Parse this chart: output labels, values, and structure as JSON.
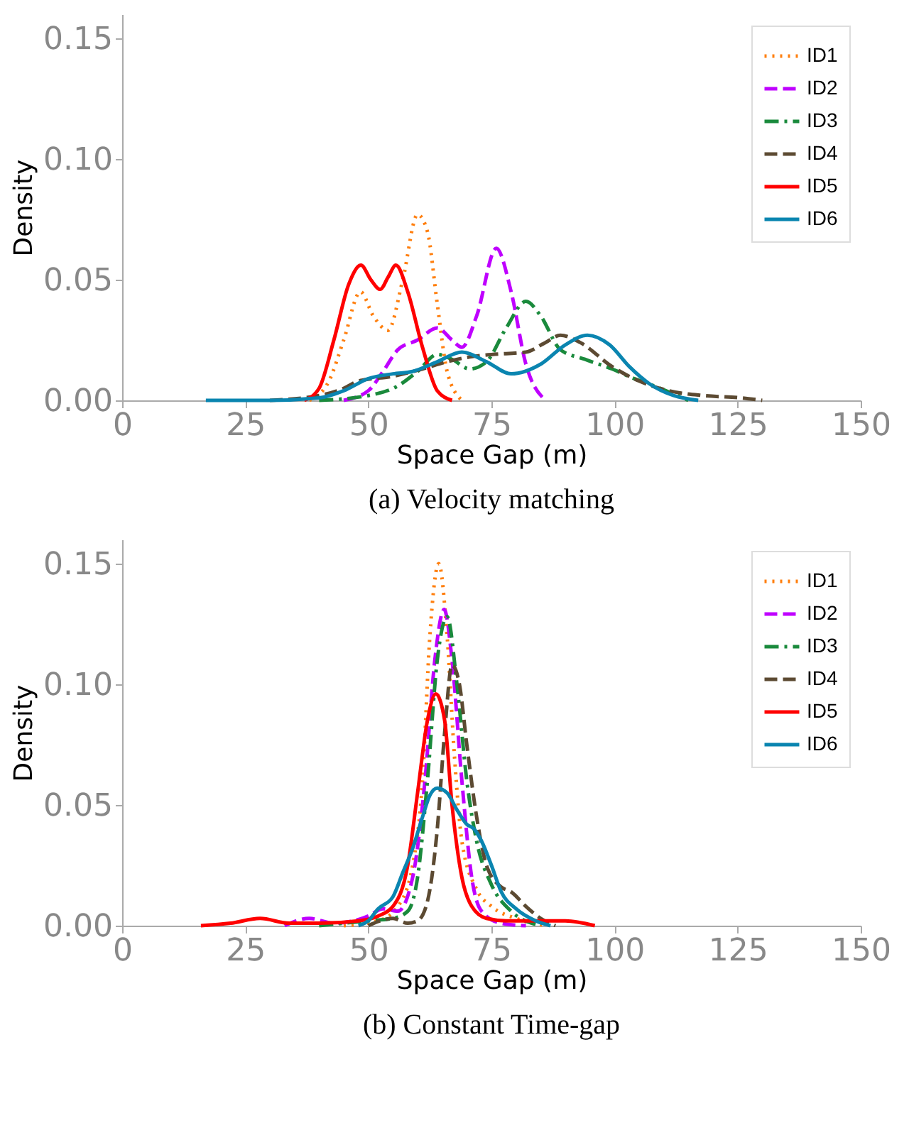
{
  "chart_data": [
    {
      "type": "line",
      "title": "(a) Velocity matching",
      "xlabel": "Space Gap (m)",
      "ylabel": "Density",
      "xlim": [
        0,
        150
      ],
      "ylim": [
        0,
        0.16
      ],
      "xticks": [
        0,
        25,
        50,
        75,
        100,
        125,
        150
      ],
      "yticks": [
        {
          "value": 0,
          "label": "0.00"
        },
        {
          "value": 0.05,
          "label": "0.05"
        },
        {
          "value": 0.1,
          "label": "0.10"
        },
        {
          "value": 0.15,
          "label": "0.15"
        }
      ],
      "grid": false,
      "legend": "top right",
      "series": [
        {
          "name": "ID1",
          "color": "#ff7f0e",
          "line_style": "dotted",
          "x": [
            38,
            42,
            45,
            48.4,
            51,
            54,
            57,
            60,
            62,
            64,
            66,
            69
          ],
          "values": [
            0,
            0.008,
            0.025,
            0.045,
            0.035,
            0.029,
            0.05,
            0.077,
            0.07,
            0.04,
            0.012,
            0
          ]
        },
        {
          "name": "ID2",
          "color": "#bf00ff",
          "line_style": "dashed",
          "x": [
            45,
            50,
            53,
            56,
            60,
            64,
            67,
            69,
            72,
            76,
            79,
            82,
            86
          ],
          "values": [
            0,
            0.004,
            0.012,
            0.021,
            0.025,
            0.03,
            0.025,
            0.022,
            0.035,
            0.063,
            0.045,
            0.015,
            0
          ]
        },
        {
          "name": "ID3",
          "color": "#1a8a3c",
          "line_style": "dashdot",
          "x": [
            40,
            50,
            56,
            60,
            64,
            67,
            70.6,
            74,
            78,
            82,
            85,
            89,
            94,
            99.5,
            104,
            108,
            115
          ],
          "values": [
            0,
            0.002,
            0.006,
            0.012,
            0.019,
            0.017,
            0.013,
            0.016,
            0.03,
            0.041,
            0.035,
            0.021,
            0.017,
            0.013,
            0.009,
            0.006,
            0
          ]
        },
        {
          "name": "ID4",
          "color": "#5c4a32",
          "line_style": "dashed",
          "x": [
            30,
            40,
            45,
            48,
            55,
            61,
            66,
            70.6,
            75,
            82,
            86,
            89,
            93,
            99.5,
            105,
            111,
            118,
            126,
            130
          ],
          "values": [
            0,
            0.002,
            0.005,
            0.008,
            0.01,
            0.013,
            0.016,
            0.018,
            0.019,
            0.02,
            0.024,
            0.027,
            0.024,
            0.014,
            0.008,
            0.004,
            0.002,
            0.001,
            0
          ]
        },
        {
          "name": "ID5",
          "color": "#ff0000",
          "line_style": "solid",
          "x": [
            37,
            40,
            43,
            46,
            48.5,
            50.5,
            52.4,
            54,
            55.6,
            58,
            61,
            64,
            67
          ],
          "values": [
            0,
            0.005,
            0.025,
            0.048,
            0.056,
            0.05,
            0.046,
            0.051,
            0.056,
            0.045,
            0.022,
            0.004,
            0
          ]
        },
        {
          "name": "ID6",
          "color": "#0a85b0",
          "line_style": "solid",
          "x": [
            17,
            30,
            40,
            45,
            50,
            55,
            59,
            64,
            69,
            74,
            79,
            85,
            90,
            94.5,
            99,
            103,
            107,
            112,
            117
          ],
          "values": [
            0,
            0,
            0.001,
            0.004,
            0.009,
            0.011,
            0.012,
            0.016,
            0.02,
            0.016,
            0.011,
            0.015,
            0.023,
            0.027,
            0.023,
            0.014,
            0.007,
            0.002,
            0
          ]
        }
      ]
    },
    {
      "type": "line",
      "title": "(b) Constant Time-gap",
      "xlabel": "Space Gap (m)",
      "ylabel": "Density",
      "xlim": [
        0,
        150
      ],
      "ylim": [
        0,
        0.16
      ],
      "xticks": [
        0,
        25,
        50,
        75,
        100,
        125,
        150
      ],
      "yticks": [
        {
          "value": 0,
          "label": "0.00"
        },
        {
          "value": 0.05,
          "label": "0.05"
        },
        {
          "value": 0.1,
          "label": "0.10"
        },
        {
          "value": 0.15,
          "label": "0.15"
        }
      ],
      "grid": false,
      "legend": "top right",
      "series": [
        {
          "name": "ID1",
          "color": "#ff7f0e",
          "line_style": "dotted",
          "x": [
            45,
            52,
            56,
            59,
            61,
            62.5,
            64.3,
            66,
            67.5,
            69,
            72,
            75,
            80,
            86
          ],
          "values": [
            0,
            0.002,
            0.008,
            0.025,
            0.06,
            0.12,
            0.15,
            0.12,
            0.07,
            0.035,
            0.015,
            0.008,
            0.003,
            0
          ]
        },
        {
          "name": "ID2",
          "color": "#bf00ff",
          "line_style": "dashed",
          "x": [
            33,
            38,
            43,
            50,
            53,
            56,
            59,
            61.5,
            63.5,
            65.4,
            67,
            69,
            71,
            73,
            77,
            82
          ],
          "values": [
            0,
            0.003,
            0.001,
            0.004,
            0.007,
            0.006,
            0.02,
            0.06,
            0.11,
            0.131,
            0.11,
            0.06,
            0.02,
            0.006,
            0.001,
            0
          ]
        },
        {
          "name": "ID3",
          "color": "#1a8a3c",
          "line_style": "dashdot",
          "x": [
            40,
            50,
            55,
            58,
            60,
            62,
            64,
            66,
            68,
            70,
            72,
            75,
            79,
            85
          ],
          "values": [
            0,
            0.002,
            0.003,
            0.006,
            0.02,
            0.06,
            0.11,
            0.128,
            0.1,
            0.06,
            0.035,
            0.017,
            0.006,
            0
          ]
        },
        {
          "name": "ID4",
          "color": "#5c4a32",
          "line_style": "dashed",
          "x": [
            50,
            55,
            58,
            60,
            62,
            64,
            65.5,
            67,
            68.5,
            70,
            72,
            74,
            77,
            79,
            82,
            85,
            88
          ],
          "values": [
            0,
            0.003,
            0.001,
            0.002,
            0.01,
            0.04,
            0.08,
            0.108,
            0.1,
            0.075,
            0.045,
            0.025,
            0.016,
            0.014,
            0.008,
            0.003,
            0
          ]
        },
        {
          "name": "ID5",
          "color": "#ff0000",
          "line_style": "solid",
          "x": [
            16,
            22,
            28,
            34,
            40,
            48,
            52,
            55,
            58,
            60,
            62,
            63.7,
            65.5,
            67,
            69,
            71,
            74,
            78,
            85,
            90,
            96
          ],
          "values": [
            0,
            0.001,
            0.003,
            0.001,
            0.001,
            0.002,
            0.004,
            0.008,
            0.025,
            0.055,
            0.085,
            0.096,
            0.085,
            0.05,
            0.02,
            0.008,
            0.003,
            0.002,
            0.002,
            0.002,
            0
          ]
        },
        {
          "name": "ID6",
          "color": "#0a85b0",
          "line_style": "solid",
          "x": [
            48,
            50,
            52,
            55,
            57,
            59,
            61,
            62.5,
            64,
            66,
            68,
            70,
            71.5,
            73,
            75,
            77,
            80,
            84,
            87
          ],
          "values": [
            0,
            0.002,
            0.007,
            0.012,
            0.022,
            0.032,
            0.045,
            0.054,
            0.057,
            0.055,
            0.048,
            0.042,
            0.04,
            0.035,
            0.025,
            0.014,
            0.007,
            0.002,
            0
          ]
        }
      ]
    }
  ]
}
